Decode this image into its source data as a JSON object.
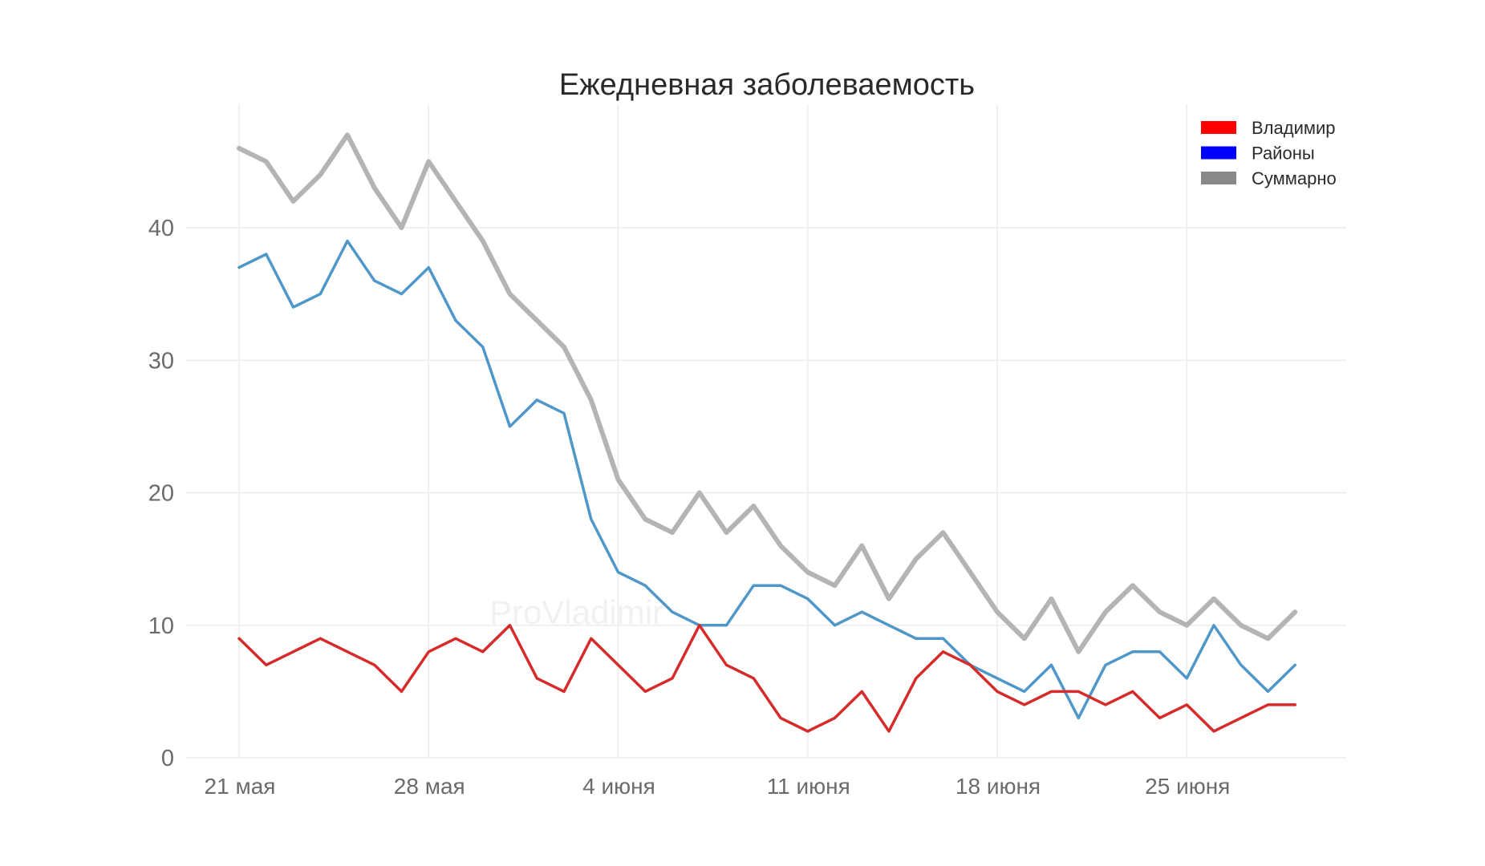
{
  "chart_data": {
    "type": "line",
    "title": "Ежедневная заболеваемость",
    "xlabel": "",
    "ylabel": "",
    "watermark": "ProVladimir",
    "x_ticks": [
      {
        "label": "21 мая",
        "index": 0
      },
      {
        "label": "28 мая",
        "index": 7
      },
      {
        "label": "4 июня",
        "index": 14
      },
      {
        "label": "11 июня",
        "index": 21
      },
      {
        "label": "18 июня",
        "index": 28
      },
      {
        "label": "25 июня",
        "index": 35
      }
    ],
    "y_ticks": [
      0,
      10,
      20,
      30,
      40
    ],
    "ylim": [
      0,
      47
    ],
    "grid": true,
    "legend_position": "top-right",
    "dates": [
      "21 мая",
      "22 мая",
      "23 мая",
      "24 мая",
      "25 мая",
      "26 мая",
      "27 мая",
      "28 мая",
      "29 мая",
      "30 мая",
      "31 мая",
      "1 июня",
      "2 июня",
      "3 июня",
      "4 июня",
      "5 июня",
      "6 июня",
      "7 июня",
      "8 июня",
      "9 июня",
      "10 июня",
      "11 июня",
      "12 июня",
      "13 июня",
      "14 июня",
      "15 июня",
      "16 июня",
      "17 июня",
      "18 июня",
      "19 июня",
      "20 июня",
      "21 июня",
      "22 июня",
      "23 июня",
      "24 июня",
      "25 июня",
      "26 июня",
      "27 июня",
      "28 июня",
      "29 июня"
    ],
    "series": [
      {
        "name": "Суммарно",
        "color": "#b4b4b4",
        "legend_color": "#888888",
        "width": 6,
        "values": [
          46,
          45,
          42,
          44,
          47,
          43,
          40,
          45,
          42,
          39,
          35,
          33,
          31,
          27,
          21,
          18,
          17,
          20,
          17,
          19,
          16,
          14,
          13,
          16,
          12,
          15,
          17,
          14,
          11,
          9,
          12,
          8,
          11,
          13,
          11,
          10,
          12,
          10,
          9,
          11
        ]
      },
      {
        "name": "Районы",
        "color": "#4f97c8",
        "legend_color": "#0000ff",
        "width": 3.5,
        "values": [
          37,
          38,
          34,
          35,
          39,
          36,
          35,
          37,
          33,
          31,
          25,
          27,
          26,
          18,
          14,
          13,
          11,
          10,
          10,
          13,
          13,
          12,
          10,
          11,
          10,
          9,
          9,
          7,
          6,
          5,
          7,
          3,
          7,
          8,
          8,
          6,
          10,
          7,
          5,
          7
        ]
      },
      {
        "name": "Владимир",
        "color": "#d62b2b",
        "legend_color": "#ff0000",
        "width": 3.5,
        "values": [
          9,
          7,
          8,
          9,
          8,
          7,
          5,
          8,
          9,
          8,
          10,
          6,
          5,
          9,
          7,
          5,
          6,
          10,
          7,
          6,
          3,
          2,
          3,
          5,
          2,
          6,
          8,
          7,
          5,
          4,
          5,
          5,
          4,
          5,
          3,
          4,
          2,
          3,
          4,
          4
        ]
      }
    ],
    "legend_order": [
      "Владимир",
      "Районы",
      "Суммарно"
    ]
  }
}
